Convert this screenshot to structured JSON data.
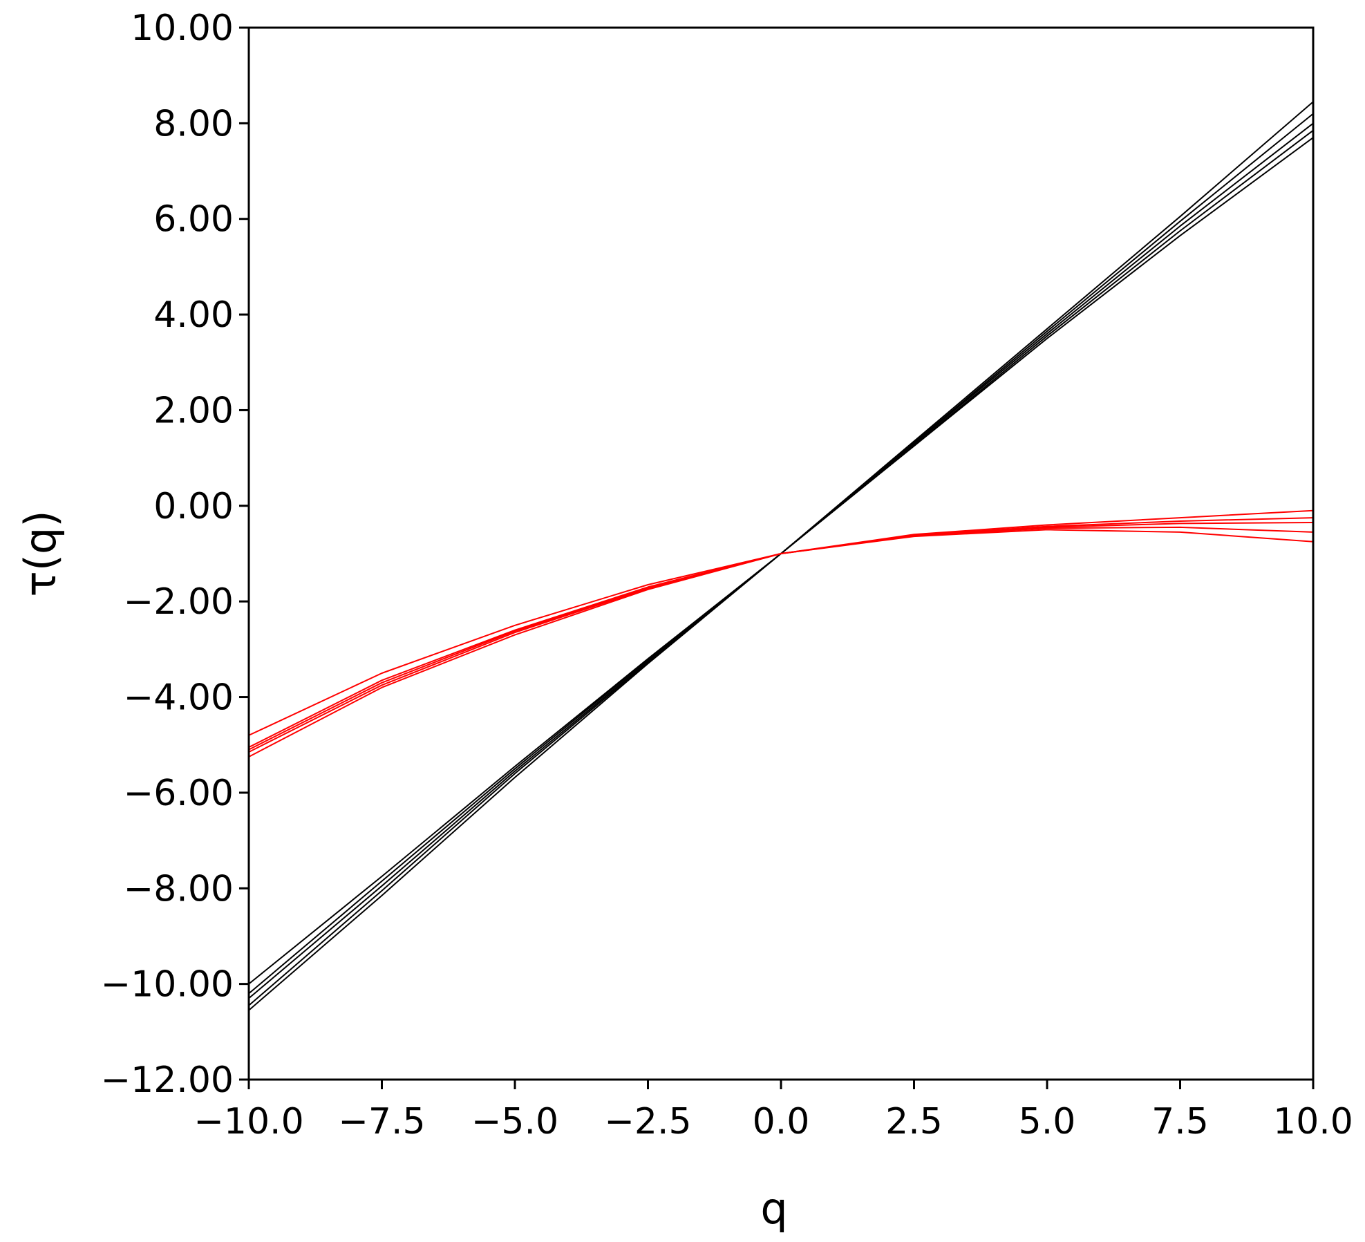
{
  "chart_data": {
    "type": "line",
    "title": "",
    "xlabel": "q",
    "ylabel": "τ(q)",
    "xlim": [
      -10,
      10
    ],
    "ylim": [
      -12,
      10
    ],
    "grid": false,
    "legend": "none",
    "x_ticks": [
      -10,
      -7.5,
      -5,
      -2.5,
      0,
      2.5,
      5,
      7.5,
      10
    ],
    "x_tick_labels": [
      "−10.0",
      "−7.5",
      "−5.0",
      "−2.5",
      "0.0",
      "2.5",
      "5.0",
      "7.5",
      "10.0"
    ],
    "y_ticks": [
      -12,
      -10,
      -8,
      -6,
      -4,
      -2,
      0,
      2,
      4,
      6,
      8,
      10
    ],
    "y_tick_labels": [
      "−12.00",
      "−10.00",
      "−8.00",
      "−6.00",
      "−4.00",
      "−2.00",
      "0.00",
      "2.00",
      "4.00",
      "6.00",
      "8.00",
      "10.00"
    ],
    "x": [
      -10,
      -7.5,
      -5,
      -2.5,
      0,
      2.5,
      5,
      7.5,
      10
    ],
    "series": [
      {
        "color": "#000000",
        "values": [
          -10.0,
          -7.75,
          -5.45,
          -3.2,
          -1.0,
          1.35,
          3.7,
          6.05,
          8.45
        ]
      },
      {
        "color": "#000000",
        "values": [
          -10.2,
          -7.85,
          -5.5,
          -3.22,
          -1.0,
          1.32,
          3.65,
          5.95,
          8.2
        ]
      },
      {
        "color": "#000000",
        "values": [
          -10.3,
          -7.95,
          -5.55,
          -3.25,
          -1.0,
          1.3,
          3.6,
          5.85,
          8.0
        ]
      },
      {
        "color": "#000000",
        "values": [
          -10.45,
          -8.05,
          -5.6,
          -3.28,
          -1.0,
          1.27,
          3.55,
          5.75,
          7.85
        ]
      },
      {
        "color": "#000000",
        "values": [
          -10.55,
          -8.15,
          -5.68,
          -3.3,
          -1.0,
          1.25,
          3.5,
          5.65,
          7.7
        ]
      },
      {
        "color": "#ff0000",
        "values": [
          -4.8,
          -3.5,
          -2.5,
          -1.65,
          -1.0,
          -0.6,
          -0.4,
          -0.25,
          -0.1
        ]
      },
      {
        "color": "#ff0000",
        "values": [
          -5.05,
          -3.65,
          -2.6,
          -1.7,
          -1.0,
          -0.62,
          -0.43,
          -0.32,
          -0.25
        ]
      },
      {
        "color": "#ff0000",
        "values": [
          -5.1,
          -3.7,
          -2.62,
          -1.72,
          -1.0,
          -0.62,
          -0.45,
          -0.37,
          -0.35
        ]
      },
      {
        "color": "#ff0000",
        "values": [
          -5.15,
          -3.75,
          -2.65,
          -1.73,
          -1.0,
          -0.63,
          -0.47,
          -0.45,
          -0.55
        ]
      },
      {
        "color": "#ff0000",
        "values": [
          -5.25,
          -3.8,
          -2.7,
          -1.75,
          -1.0,
          -0.64,
          -0.5,
          -0.55,
          -0.75
        ]
      }
    ]
  }
}
